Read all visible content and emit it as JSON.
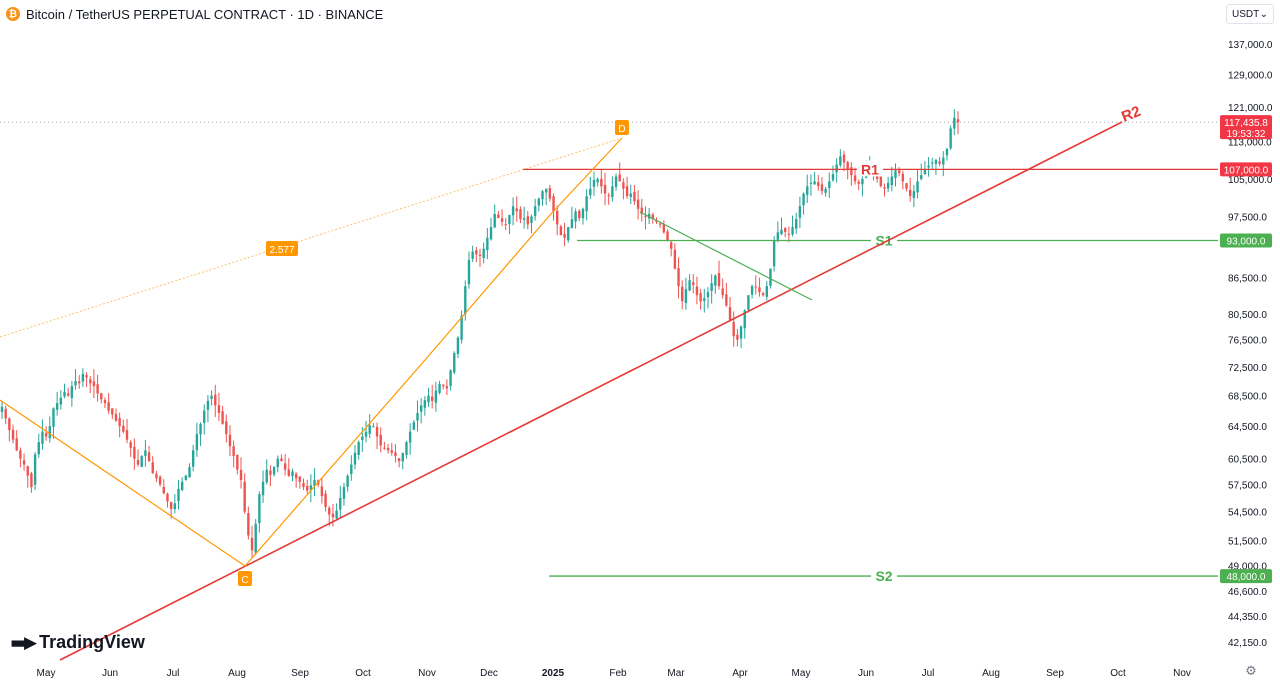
{
  "header": {
    "title": "Bitcoin / TetherUS PERPETUAL CONTRACT · 1D · BINANCE",
    "logo_glyph": "₿"
  },
  "currency_select": {
    "value": "USDT"
  },
  "branding": {
    "name": "TradingView"
  },
  "colors": {
    "up": "#26a69a",
    "down": "#ef5350",
    "green_line": "#4caf50",
    "red_line": "#e53935",
    "orange": "#ff9800",
    "axis_text": "#131722"
  },
  "icons": {
    "settings": "gear-icon",
    "dropdown": "chevron-down-icon"
  },
  "chart_data": {
    "type": "candlestick",
    "y_axis": {
      "ticks": [
        "137,000.0",
        "129,000.0",
        "121,000.0",
        "113,000.0",
        "105,000.0",
        "97,500.0",
        "86,500.0",
        "80,500.0",
        "76,500.0",
        "72,500.0",
        "68,500.0",
        "64,500.0",
        "60,500.0",
        "57,500.0",
        "54,500.0",
        "51,500.0",
        "49,000.0",
        "46,600.0",
        "44,350.0",
        "42,150.0"
      ],
      "scale": "log",
      "range": [
        40500,
        142000
      ]
    },
    "x_axis": {
      "ticks": [
        "May",
        "Jun",
        "Jul",
        "Aug",
        "Sep",
        "Oct",
        "Nov",
        "Dec",
        "2025",
        "Feb",
        "Mar",
        "Apr",
        "May",
        "Jun",
        "Jul",
        "Aug",
        "Sep",
        "Oct",
        "Nov"
      ],
      "bold_tick": "2025"
    },
    "price_labels": [
      {
        "value": "117,435.8",
        "sub": "19:53:32",
        "price": 117435.8,
        "color": "#f23645"
      },
      {
        "value": "107,000.0",
        "price": 107000,
        "color": "#f23645"
      },
      {
        "value": "93,000.0",
        "price": 93000,
        "color": "#4caf50"
      },
      {
        "value": "48,000.0",
        "price": 48000,
        "color": "#4caf50"
      }
    ],
    "levels": [
      {
        "name": "R1",
        "price": 107000,
        "from_month": "Dec",
        "color": "#e53935"
      },
      {
        "name": "S1",
        "price": 93000,
        "from_month": "Dec",
        "color": "#4caf50"
      },
      {
        "name": "S2",
        "price": 48000,
        "from_month": "Dec",
        "color": "#4caf50"
      }
    ],
    "trendline": {
      "name": "R2",
      "from": [
        "May",
        38500
      ],
      "to": [
        "Jul",
        120000
      ],
      "color": "#e53935"
    },
    "pattern": {
      "ratio": "2.577",
      "points": {
        "C": [
          "Aug",
          49000
        ],
        "D": [
          "Jan",
          115000
        ]
      }
    },
    "candles_close": [
      67000,
      65500,
      64000,
      62800,
      61500,
      60500,
      59800,
      58500,
      57200,
      61000,
      62500,
      63800,
      63200,
      64500,
      66800,
      67500,
      68200,
      69000,
      68500,
      69800,
      70500,
      70200,
      71500,
      71000,
      70200,
      69800,
      68800,
      68000,
      67500,
      66500,
      66000,
      65200,
      64500,
      63800,
      62800,
      61800,
      60500,
      59800,
      60800,
      61500,
      60200,
      58800,
      58200,
      57500,
      56500,
      55600,
      54800,
      55400,
      57000,
      57800,
      58500,
      59500,
      61500,
      63500,
      64800,
      66500,
      67800,
      68500,
      67200,
      66200,
      64800,
      63500,
      62000,
      60800,
      59200,
      58000,
      54500,
      52000,
      50500,
      53200,
      56400,
      57800,
      59200,
      58600,
      59500,
      60500,
      60200,
      59200,
      58500,
      59000,
      58200,
      57800,
      57200,
      56800,
      57400,
      58000,
      57500,
      56200,
      55000,
      54200,
      53900,
      54600,
      56000,
      57200,
      58500,
      59800,
      61200,
      62500,
      63200,
      63800,
      64600,
      64500,
      63200,
      62100,
      61800,
      61500,
      61200,
      60800,
      60200,
      61200,
      62500,
      63800,
      65000,
      66200,
      67200,
      67900,
      68500,
      67800,
      69200,
      70100,
      69800,
      69500,
      72000,
      74500,
      76800,
      80200,
      85000,
      89500,
      91000,
      90500,
      90200,
      91500,
      93500,
      95500,
      98000,
      97200,
      96500,
      96000,
      97800,
      99500,
      98500,
      97000,
      97200,
      96000,
      97500,
      99500,
      101000,
      102500,
      103000,
      101000,
      98500,
      96000,
      94000,
      93500,
      95500,
      97000,
      98500,
      97200,
      99000,
      101500,
      103000,
      104800,
      105000,
      103500,
      102000,
      101500,
      103500,
      105500,
      104500,
      103000,
      101500,
      102000,
      100500,
      99000,
      98000,
      97500,
      98000,
      97000,
      96500,
      96000,
      94500,
      93000,
      91500,
      88000,
      85000,
      82500,
      84500,
      86000,
      85200,
      83500,
      82500,
      83000,
      84000,
      85500,
      86800,
      85000,
      83500,
      81800,
      79500,
      77000,
      76500,
      78500,
      81000,
      83500,
      85000,
      84800,
      84000,
      83500,
      85000,
      88000,
      93000,
      94500,
      95000,
      94600,
      94200,
      95500,
      97000,
      99500,
      102000,
      103500,
      104200,
      104500,
      103500,
      102500,
      103000,
      104500,
      106000,
      108000,
      109800,
      108500,
      107000,
      105800,
      104500,
      104000,
      105000,
      106500,
      107200,
      106800,
      105000,
      103500,
      103000,
      104200,
      105500,
      106800,
      106200,
      104500,
      103000,
      101500,
      102500,
      104500,
      105800,
      107000,
      107800,
      108500,
      109000,
      108200,
      109500,
      111500,
      116000,
      118500,
      117435
    ]
  }
}
